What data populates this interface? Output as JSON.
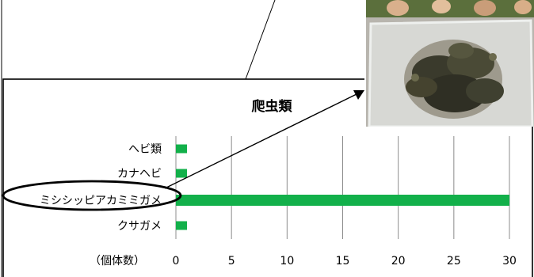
{
  "chart_data": {
    "type": "bar",
    "orientation": "horizontal",
    "title": "爬虫類",
    "categories": [
      "ヘビ類",
      "カナヘビ",
      "ミシシッピアカミミガメ",
      "クサガメ"
    ],
    "values": [
      1,
      1,
      30,
      1
    ],
    "xlabel": "（個体数）",
    "xlim": [
      0,
      30
    ],
    "xticks": [
      0,
      5,
      10,
      15,
      20,
      25,
      30
    ],
    "grid": true,
    "legend": "none",
    "bar_color": "#12b04a",
    "highlighted_category": "ミシシッピアカミミガメ"
  },
  "photo": {
    "subject": "turtles-in-plastic-tub"
  }
}
